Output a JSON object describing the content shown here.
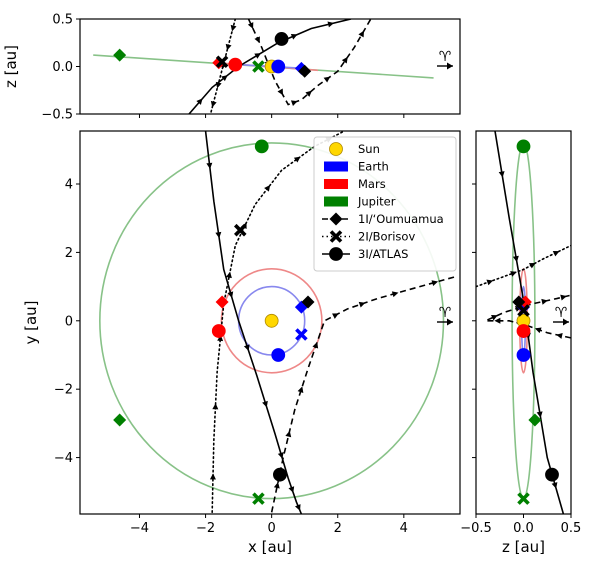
{
  "chart_data": [
    {
      "panel": "main",
      "type": "line",
      "xlabel": "x [au]",
      "ylabel": "y [au]",
      "xlim": [
        -5.8,
        5.7
      ],
      "ylim": [
        -5.65,
        5.55
      ],
      "xticks": [
        "−4",
        "−2",
        "0",
        "2",
        "4"
      ],
      "xtick_values": [
        -4,
        -2,
        0,
        2,
        4
      ],
      "yticks": [
        "−4",
        "−2",
        "0",
        "2",
        "4"
      ],
      "ytick_values": [
        -4,
        -2,
        0,
        2,
        4
      ],
      "aries_symbol": "♈",
      "legend": {
        "position": "top-right",
        "entries": [
          "Sun",
          "Earth",
          "Mars",
          "Jupiter",
          "1I/‘Oumuamua",
          "2I/Borisov",
          "3I/ATLAS"
        ]
      },
      "orbits": [
        {
          "name": "Earth",
          "color": "#8888ee",
          "cx": 0,
          "cy": 0,
          "r": 1.0
        },
        {
          "name": "Mars",
          "color": "#ee8888",
          "cx": 0,
          "cy": 0,
          "r": 1.52
        },
        {
          "name": "Jupiter",
          "color": "#88c288",
          "cx": 0,
          "cy": 0,
          "r": 5.2
        }
      ],
      "series": [
        {
          "name": "1I/‘Oumuamua",
          "style": "dashed",
          "x": [
            0.0,
            0.35,
            0.7,
            1.1,
            1.6,
            2.3,
            3.2,
            4.3,
            5.6
          ],
          "y": [
            -5.6,
            -4.0,
            -2.6,
            -1.4,
            0.0,
            0.35,
            0.65,
            0.95,
            1.3
          ]
        },
        {
          "name": "2I/Borisov",
          "style": "dotted",
          "x": [
            -1.8,
            -1.75,
            -1.65,
            -1.45,
            -1.1,
            -0.5,
            0.3,
            1.3,
            2.2
          ],
          "y": [
            -5.6,
            -3.5,
            -1.5,
            0.5,
            2.2,
            3.4,
            4.4,
            5.1,
            5.55
          ]
        },
        {
          "name": "3I/ATLAS",
          "style": "solid",
          "x": [
            -2.0,
            -1.75,
            -1.45,
            -1.0,
            -0.45,
            0.1,
            0.5,
            0.75,
            0.9
          ],
          "y": [
            5.55,
            3.5,
            1.5,
            0.0,
            -1.6,
            -3.3,
            -4.6,
            -5.3,
            -5.65
          ]
        }
      ],
      "markers": [
        {
          "body": "Sun",
          "x": 0.0,
          "y": 0.0,
          "color": "#ffd700",
          "shape": "circle"
        },
        {
          "body": "Earth",
          "x": 0.2,
          "y": -1.0,
          "color": "#0000ff",
          "shape": "circle"
        },
        {
          "body": "Earth",
          "x": 0.9,
          "y": 0.4,
          "color": "#0000ff",
          "shape": "diamond"
        },
        {
          "body": "Earth",
          "x": 0.9,
          "y": -0.4,
          "color": "#0000ff",
          "shape": "cross"
        },
        {
          "body": "Mars",
          "x": -1.6,
          "y": -0.3,
          "color": "#ff0000",
          "shape": "circle"
        },
        {
          "body": "Mars",
          "x": -1.5,
          "y": 0.55,
          "color": "#ff0000",
          "shape": "diamond"
        },
        {
          "body": "Jupiter",
          "x": -0.3,
          "y": 5.1,
          "color": "#008000",
          "shape": "circle"
        },
        {
          "body": "Jupiter",
          "x": -4.6,
          "y": -2.9,
          "color": "#008000",
          "shape": "diamond"
        },
        {
          "body": "Jupiter",
          "x": -0.4,
          "y": -5.2,
          "color": "#008000",
          "shape": "cross"
        },
        {
          "body": "1I/‘Oumuamua",
          "x": 1.1,
          "y": 0.55,
          "color": "#000000",
          "shape": "diamond"
        },
        {
          "body": "2I/Borisov",
          "x": -0.95,
          "y": 2.65,
          "color": "#000000",
          "shape": "cross"
        },
        {
          "body": "3I/ATLAS",
          "x": 0.25,
          "y": -4.5,
          "color": "#000000",
          "shape": "circle"
        }
      ]
    },
    {
      "panel": "top",
      "type": "line",
      "xlabel": "",
      "ylabel": "z [au]",
      "xlim": [
        -5.8,
        5.7
      ],
      "ylim": [
        -0.5,
        0.5
      ],
      "yticks": [
        "−0.5",
        "0.0",
        "0.5"
      ],
      "ytick_values": [
        -0.5,
        0.0,
        0.5
      ],
      "aries_symbol": "♈",
      "orbits_lines": [
        {
          "name": "Jupiter",
          "color": "#88c288",
          "x": [
            -5.4,
            4.9
          ],
          "y": [
            0.12,
            -0.12
          ]
        },
        {
          "name": "Mars",
          "color": "#ee8888",
          "x": [
            -1.7,
            1.4
          ],
          "y": [
            0.04,
            -0.04
          ]
        },
        {
          "name": "Earth",
          "color": "#8888ee",
          "x": [
            -1.0,
            1.0
          ],
          "y": [
            0.02,
            -0.02
          ]
        }
      ],
      "series": [
        {
          "name": "1I/‘Oumuamua",
          "style": "dashed",
          "x": [
            -0.7,
            -0.5,
            -0.3,
            0.1,
            0.5,
            0.9,
            1.4,
            2.0,
            2.5,
            3.0
          ],
          "y": [
            0.5,
            0.35,
            0.2,
            -0.15,
            -0.4,
            -0.35,
            -0.2,
            -0.05,
            0.2,
            0.5
          ]
        },
        {
          "name": "2I/Borisov",
          "style": "dotted",
          "x": [
            -1.1,
            -1.25,
            -1.4,
            -1.55,
            -1.7,
            -1.85
          ],
          "y": [
            0.5,
            0.3,
            0.1,
            -0.1,
            -0.3,
            -0.5
          ]
        },
        {
          "name": "3I/ATLAS",
          "style": "solid",
          "x": [
            -2.5,
            -1.8,
            -1.0,
            0.2,
            1.2,
            2.4
          ],
          "y": [
            -0.5,
            -0.22,
            0.0,
            0.25,
            0.4,
            0.5
          ]
        }
      ],
      "markers": [
        {
          "body": "Sun",
          "x": 0.0,
          "y": 0.0,
          "color": "#ffd700",
          "shape": "circle"
        },
        {
          "body": "Jupiter",
          "x": -4.6,
          "y": 0.12,
          "color": "#008000",
          "shape": "diamond"
        },
        {
          "body": "Mars",
          "x": -1.6,
          "y": 0.04,
          "color": "#ff0000",
          "shape": "diamond"
        },
        {
          "body": "Mars",
          "x": -1.1,
          "y": 0.02,
          "color": "#ff0000",
          "shape": "circle"
        },
        {
          "body": "Earth",
          "x": 0.2,
          "y": 0.0,
          "color": "#0000ff",
          "shape": "circle"
        },
        {
          "body": "Earth",
          "x": 0.9,
          "y": -0.02,
          "color": "#0000ff",
          "shape": "diamond"
        },
        {
          "body": "Jupiter",
          "x": -0.4,
          "y": 0.0,
          "color": "#008000",
          "shape": "cross"
        },
        {
          "body": "1I/‘Oumuamua",
          "x": 1.0,
          "y": -0.05,
          "color": "#000000",
          "shape": "diamond"
        },
        {
          "body": "2I/Borisov",
          "x": -1.5,
          "y": 0.05,
          "color": "#000000",
          "shape": "cross"
        },
        {
          "body": "3I/ATLAS",
          "x": 0.3,
          "y": 0.29,
          "color": "#000000",
          "shape": "circle"
        }
      ]
    },
    {
      "panel": "right",
      "type": "line",
      "xlabel": "z [au]",
      "ylabel": "",
      "xlim": [
        -0.5,
        0.5
      ],
      "ylim": [
        -5.65,
        5.55
      ],
      "xticks": [
        "−0.5",
        "0.0",
        "0.5"
      ],
      "xtick_values": [
        -0.5,
        0.0,
        0.5
      ],
      "aries_symbol": "♈",
      "orbits_lines": [
        {
          "name": "Jupiter",
          "color": "#88c288",
          "cx": 0.0,
          "cy": 0.0,
          "rx": 0.12,
          "ry": 5.2
        },
        {
          "name": "Mars",
          "color": "#ee8888",
          "cx": 0.0,
          "cy": 0.0,
          "rx": 0.04,
          "ry": 1.52
        },
        {
          "name": "Earth",
          "color": "#8888ee",
          "cx": 0.0,
          "cy": 0.0,
          "rx": 0.02,
          "ry": 1.0
        }
      ],
      "series": [
        {
          "name": "1I/‘Oumuamua",
          "style": "dashed",
          "x": [
            0.5,
            0.25,
            0.05,
            -0.15,
            -0.4,
            -0.2,
            0.1,
            0.35,
            0.5
          ],
          "y": [
            -0.5,
            -0.35,
            -0.15,
            0.0,
            0.0,
            0.25,
            0.5,
            0.65,
            0.75
          ]
        },
        {
          "name": "2I/Borisov",
          "style": "dotted",
          "x": [
            -0.5,
            -0.2,
            0.0,
            0.2,
            0.5
          ],
          "y": [
            1.0,
            1.3,
            1.5,
            1.8,
            2.2
          ]
        },
        {
          "name": "3I/ATLAS",
          "style": "solid",
          "x": [
            -0.3,
            -0.15,
            0.0,
            0.1,
            0.25,
            0.42
          ],
          "y": [
            5.55,
            3.0,
            0.6,
            -1.5,
            -4.0,
            -5.65
          ]
        }
      ],
      "markers": [
        {
          "body": "Sun",
          "x": 0.0,
          "y": 0.0,
          "color": "#ffd700",
          "shape": "circle"
        },
        {
          "body": "Jupiter",
          "x": 0.0,
          "y": 5.1,
          "color": "#008000",
          "shape": "circle"
        },
        {
          "body": "Jupiter",
          "x": 0.12,
          "y": -2.9,
          "color": "#008000",
          "shape": "diamond"
        },
        {
          "body": "Jupiter",
          "x": 0.0,
          "y": -5.2,
          "color": "#008000",
          "shape": "cross"
        },
        {
          "body": "Earth",
          "x": 0.0,
          "y": -1.0,
          "color": "#0000ff",
          "shape": "circle"
        },
        {
          "body": "Earth",
          "x": 0.0,
          "y": 0.4,
          "color": "#0000ff",
          "shape": "diamond"
        },
        {
          "body": "Mars",
          "x": 0.02,
          "y": 0.55,
          "color": "#ff0000",
          "shape": "diamond"
        },
        {
          "body": "Mars",
          "x": 0.0,
          "y": -0.3,
          "color": "#ff0000",
          "shape": "circle"
        },
        {
          "body": "1I/‘Oumuamua",
          "x": -0.05,
          "y": 0.55,
          "color": "#000000",
          "shape": "diamond"
        },
        {
          "body": "2I/Borisov",
          "x": 0.0,
          "y": 0.3,
          "color": "#000000",
          "shape": "cross"
        },
        {
          "body": "3I/ATLAS",
          "x": 0.3,
          "y": -4.5,
          "color": "#000000",
          "shape": "circle"
        }
      ]
    }
  ]
}
